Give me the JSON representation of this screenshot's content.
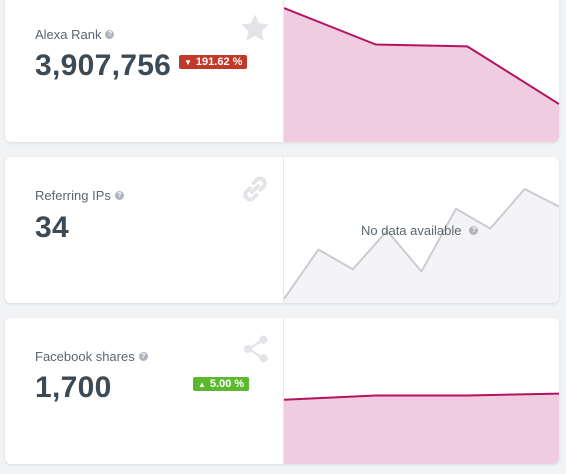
{
  "colors": {
    "accent": "#b5135f",
    "area_fill": "#f0cce0",
    "down": "#c0392b",
    "up": "#5cb82e",
    "nodata_line": "#c9ccd1",
    "nodata_fill": "#f4f4f6"
  },
  "cards": [
    {
      "label": "Alexa Rank",
      "value": "3,907,756",
      "badge": {
        "text": "191.62 %",
        "direction": "down"
      },
      "icon": "star-icon"
    },
    {
      "label": "Referring IPs",
      "value": "34",
      "icon": "link-icon",
      "nodata": "No data available"
    },
    {
      "label": "Facebook shares",
      "value": "1,700",
      "badge": {
        "text": "5.00 %",
        "direction": "up"
      },
      "icon": "share-icon"
    }
  ],
  "chart_data": [
    {
      "type": "area",
      "series": [
        {
          "values": [
            1.0,
            0.62,
            0.6,
            0.0
          ]
        }
      ]
    },
    {
      "type": "line",
      "series": [
        {
          "values": [
            0.0,
            0.45,
            0.27,
            0.62,
            0.25,
            0.82,
            0.64,
            1.0,
            0.84
          ]
        }
      ]
    },
    {
      "type": "area",
      "series": [
        {
          "values": [
            0.76,
            0.91,
            0.91,
            0.98
          ]
        }
      ]
    }
  ]
}
